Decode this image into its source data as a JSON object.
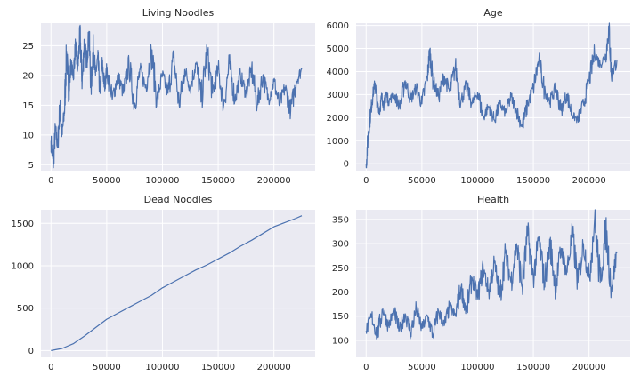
{
  "chart_data": [
    {
      "type": "line",
      "title": "Living Noodles",
      "xlabel": "",
      "ylabel": "",
      "xlim": [
        -9000,
        237000
      ],
      "ylim": [
        4,
        28.8
      ],
      "xticks": [
        0,
        50000,
        100000,
        150000,
        200000
      ],
      "yticks": [
        5,
        10,
        15,
        20,
        25
      ],
      "grid": true,
      "color": "#4c72b0",
      "series": [
        {
          "x": [
            0,
            2000,
            4000,
            6000,
            8000,
            10000,
            12000,
            14000,
            16000,
            18000,
            20000,
            22000,
            24000,
            26000,
            28000,
            30000,
            32000,
            34000,
            36000,
            38000,
            40000,
            42000,
            44000,
            46000,
            48000,
            50000,
            55000,
            60000,
            65000,
            70000,
            75000,
            80000,
            85000,
            90000,
            95000,
            100000,
            105000,
            110000,
            115000,
            120000,
            125000,
            130000,
            135000,
            140000,
            145000,
            150000,
            155000,
            160000,
            165000,
            170000,
            175000,
            180000,
            185000,
            190000,
            195000,
            200000,
            205000,
            210000,
            215000,
            220000,
            225000
          ],
          "values": [
            9,
            5,
            11,
            8,
            15,
            10,
            14,
            24,
            17,
            22,
            20,
            25,
            21,
            27,
            19,
            26,
            22,
            27,
            18,
            25,
            20,
            23,
            17,
            22,
            18,
            21,
            16,
            20,
            17,
            22,
            15,
            21,
            18,
            24,
            16,
            20,
            17,
            23,
            15,
            21,
            18,
            22,
            16,
            24,
            17,
            21,
            15,
            22,
            16,
            20,
            17,
            21,
            15,
            20,
            16,
            19,
            15,
            18,
            14,
            19,
            21
          ]
        }
      ]
    },
    {
      "type": "line",
      "title": "Age",
      "xlabel": "",
      "ylabel": "",
      "xlim": [
        -9000,
        237000
      ],
      "ylim": [
        -300,
        6100
      ],
      "xticks": [
        0,
        50000,
        100000,
        150000,
        200000
      ],
      "yticks": [
        0,
        1000,
        2000,
        3000,
        4000,
        5000,
        6000
      ],
      "grid": true,
      "color": "#4c72b0",
      "series": [
        {
          "x": [
            0,
            2000,
            4000,
            6000,
            8000,
            10000,
            12000,
            14000,
            16000,
            18000,
            20000,
            25000,
            30000,
            35000,
            40000,
            45000,
            50000,
            55000,
            57000,
            60000,
            65000,
            70000,
            75000,
            80000,
            85000,
            90000,
            95000,
            100000,
            105000,
            110000,
            115000,
            120000,
            125000,
            130000,
            135000,
            140000,
            145000,
            150000,
            155000,
            160000,
            165000,
            170000,
            175000,
            180000,
            185000,
            190000,
            195000,
            200000,
            205000,
            210000,
            215000,
            218000,
            220000,
            225000
          ],
          "values": [
            0,
            1300,
            2200,
            3000,
            3500,
            2600,
            2300,
            2900,
            2500,
            3100,
            2700,
            3000,
            2500,
            3600,
            2800,
            3300,
            2600,
            3800,
            4900,
            3600,
            2900,
            3800,
            3100,
            4200,
            2700,
            3400,
            2600,
            3100,
            2000,
            2500,
            1900,
            2600,
            2200,
            2900,
            2300,
            1600,
            2600,
            3300,
            4500,
            3200,
            2700,
            3300,
            2300,
            3000,
            2100,
            1900,
            2600,
            3600,
            4800,
            4300,
            4700,
            5900,
            3800,
            4500
          ]
        }
      ]
    },
    {
      "type": "line",
      "title": "Dead Noodles",
      "xlabel": "",
      "ylabel": "",
      "xlim": [
        -9000,
        237000
      ],
      "ylim": [
        -80,
        1660
      ],
      "xticks": [
        0,
        50000,
        100000,
        150000,
        200000
      ],
      "yticks": [
        0,
        500,
        1000,
        1500
      ],
      "grid": true,
      "color": "#4c72b0",
      "series": [
        {
          "x": [
            0,
            10000,
            20000,
            30000,
            40000,
            50000,
            60000,
            70000,
            80000,
            90000,
            100000,
            110000,
            120000,
            130000,
            140000,
            150000,
            160000,
            170000,
            180000,
            190000,
            200000,
            210000,
            220000,
            225000
          ],
          "values": [
            0,
            25,
            80,
            170,
            270,
            370,
            440,
            510,
            580,
            650,
            740,
            810,
            880,
            950,
            1010,
            1080,
            1150,
            1230,
            1300,
            1380,
            1460,
            1510,
            1560,
            1590
          ]
        }
      ]
    },
    {
      "type": "line",
      "title": "Health",
      "xlabel": "",
      "ylabel": "",
      "xlim": [
        -9000,
        237000
      ],
      "ylim": [
        65,
        370
      ],
      "xticks": [
        0,
        50000,
        100000,
        150000,
        200000
      ],
      "yticks": [
        100,
        150,
        200,
        250,
        300,
        350
      ],
      "grid": true,
      "color": "#4c72b0",
      "series": [
        {
          "x": [
            0,
            5000,
            10000,
            15000,
            20000,
            25000,
            30000,
            35000,
            40000,
            45000,
            50000,
            55000,
            60000,
            65000,
            70000,
            75000,
            80000,
            85000,
            90000,
            95000,
            100000,
            105000,
            110000,
            115000,
            120000,
            125000,
            130000,
            135000,
            140000,
            145000,
            150000,
            155000,
            160000,
            165000,
            170000,
            175000,
            180000,
            185000,
            190000,
            195000,
            200000,
            205000,
            210000,
            215000,
            220000,
            225000
          ],
          "values": [
            120,
            150,
            110,
            165,
            130,
            160,
            120,
            155,
            115,
            165,
            125,
            150,
            110,
            160,
            130,
            170,
            150,
            210,
            160,
            230,
            190,
            250,
            200,
            260,
            190,
            280,
            220,
            300,
            210,
            320,
            230,
            310,
            220,
            300,
            210,
            290,
            240,
            320,
            220,
            300,
            230,
            350,
            220,
            330,
            210,
            280
          ]
        }
      ]
    }
  ]
}
